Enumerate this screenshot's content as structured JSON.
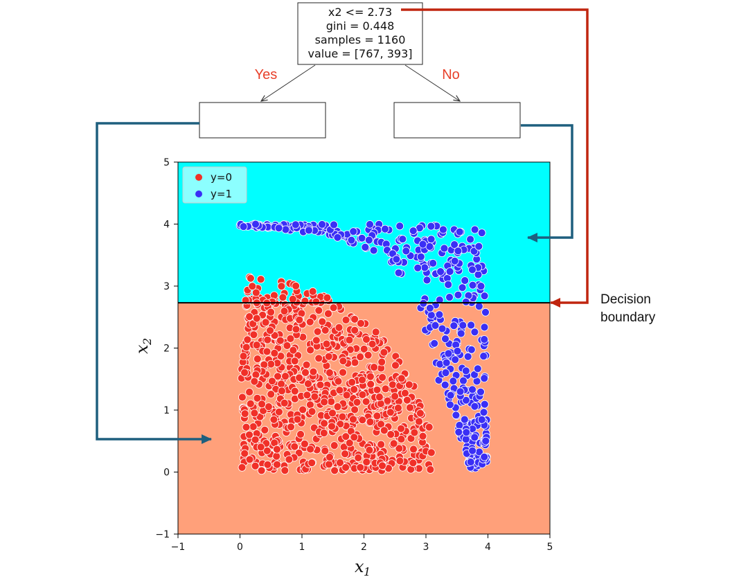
{
  "tree": {
    "root_lines": [
      "x2 <= 2.73",
      "gini = 0.448",
      "samples = 1160",
      "value = [767, 393]"
    ],
    "yes_label": "Yes",
    "no_label": "No",
    "left_child_text": "",
    "right_child_text": ""
  },
  "annotation": {
    "line1": "Decision",
    "line2": "boundary"
  },
  "colors": {
    "region_upper": "#00ffff",
    "region_lower": "#ffa07a",
    "class0": "#f03028",
    "class1": "#3a2ff5",
    "arrow_blue": "#1e5f7e",
    "arrow_red": "#c0250f",
    "branch_text": "#e8402a"
  },
  "chart_data": {
    "type": "scatter",
    "title": "",
    "xlabel": "x",
    "xlabel_sub": "1",
    "ylabel": "x",
    "ylabel_sub": "2",
    "xlim": [
      -1,
      5
    ],
    "ylim": [
      -1,
      5
    ],
    "xticks": [
      -1,
      0,
      1,
      2,
      3,
      4,
      5
    ],
    "yticks": [
      -1,
      0,
      1,
      2,
      3,
      4,
      5
    ],
    "xtick_labels": [
      "−1",
      "0",
      "1",
      "2",
      "3",
      "4",
      "5"
    ],
    "ytick_labels": [
      "−1",
      "0",
      "1",
      "2",
      "3",
      "4",
      "5"
    ],
    "decision_boundary": {
      "feature": "x2",
      "threshold": 2.73
    },
    "legend": {
      "position": "top-left",
      "entries": [
        "y=0",
        "y=1"
      ]
    },
    "series": [
      {
        "name": "y=0",
        "n_points": 767,
        "description_region": "quarter-disk of radius ~3.1 centred at origin, x1 0–3.1, x2 0–3.15"
      },
      {
        "name": "y=1",
        "n_points": 393,
        "description_region": "band from (0,4) to (4,4) curving down along x1≈4 to x2≈0.1"
      }
    ]
  }
}
